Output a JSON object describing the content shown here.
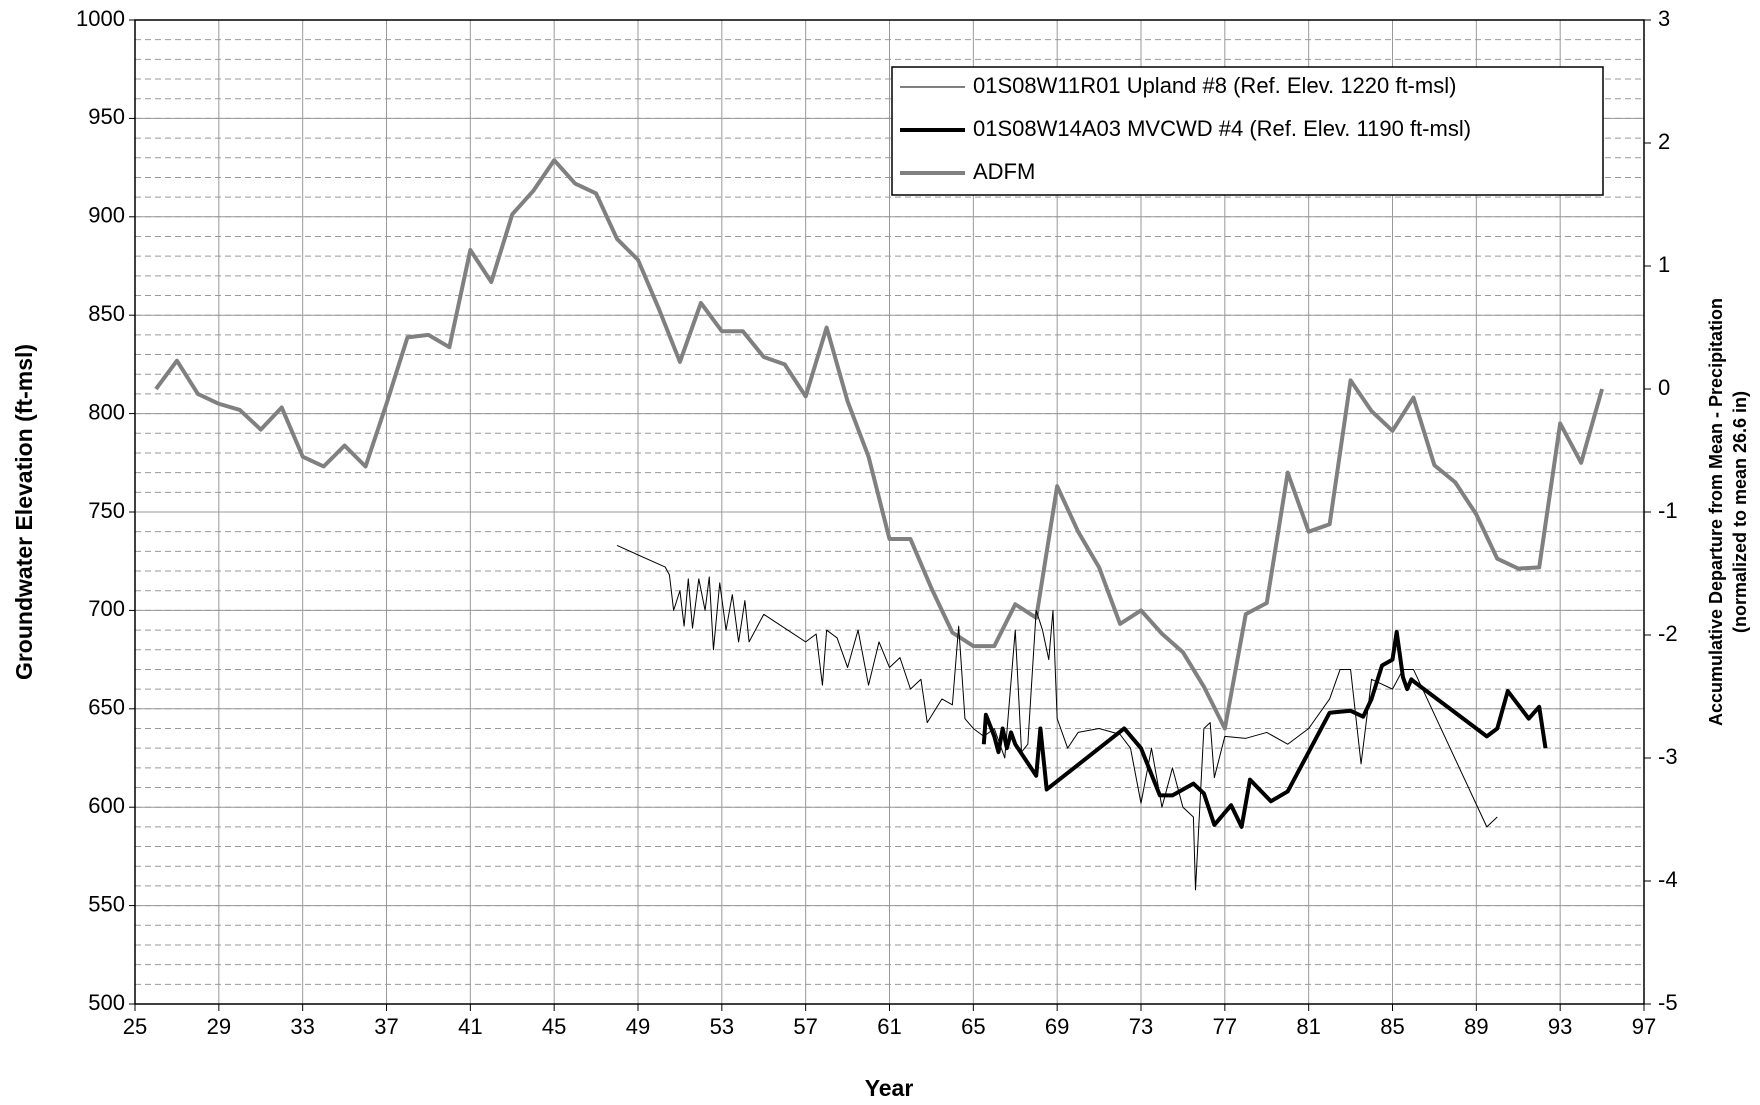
{
  "chart_data": {
    "type": "line",
    "x_label": "Year",
    "y_label": "Groundwater Elevation (ft-msl)",
    "y2_label": [
      "Accumulative Departure from Mean - Precipitation",
      "(normalized to mean 26.6 in)"
    ],
    "xlim": [
      25,
      97
    ],
    "xticks": [
      25,
      29,
      33,
      37,
      41,
      45,
      49,
      53,
      57,
      61,
      65,
      69,
      73,
      77,
      81,
      85,
      89,
      93,
      97
    ],
    "ylim": [
      500,
      1000
    ],
    "yticks": [
      500,
      550,
      600,
      650,
      700,
      750,
      800,
      850,
      900,
      950,
      1000
    ],
    "y2lim": [
      -5,
      3
    ],
    "y2ticks": [
      -5,
      -4,
      -3,
      -2,
      -1,
      0,
      1,
      2,
      3
    ],
    "grid": true,
    "y_minor_grid": 10,
    "legend": "upper right",
    "series": [
      {
        "name": "01S08W11R01 Upland #8 (Ref. Elev. 1220 ft-msl)",
        "color": "#000000",
        "width": 1,
        "x": [
          48.0,
          50.3,
          50.5,
          50.7,
          51.0,
          51.2,
          51.4,
          51.6,
          51.9,
          52.2,
          52.4,
          52.6,
          52.9,
          53.2,
          53.5,
          53.8,
          54.1,
          54.3,
          55.0,
          57.0,
          57.5,
          57.8,
          58.0,
          58.5,
          59.0,
          59.5,
          60.0,
          60.5,
          61.0,
          61.5,
          62.0,
          62.5,
          62.8,
          63.5,
          64.0,
          64.3,
          64.6,
          65.0,
          65.5,
          66.0,
          66.5,
          67.0,
          67.3,
          67.6,
          68.0,
          68.3,
          68.6,
          68.8,
          69.0,
          69.5,
          70.0,
          71.0,
          72.0,
          72.5,
          73.0,
          73.5,
          74.0,
          74.5,
          75.0,
          75.5,
          75.6,
          76.0,
          76.3,
          76.5,
          77.0,
          78.0,
          79.0,
          80.0,
          81.0,
          82.0,
          82.5,
          83.0,
          83.5,
          84.0,
          85.0,
          85.5,
          86.0,
          89.5,
          90.0
        ],
        "values": [
          733,
          722,
          718,
          700,
          710,
          692,
          716,
          691,
          716,
          700,
          717,
          680,
          714,
          690,
          708,
          684,
          705,
          684,
          698,
          684,
          688,
          662,
          690,
          686,
          671,
          690,
          662,
          684,
          671,
          676,
          660,
          665,
          643,
          655,
          652,
          692,
          645,
          640,
          636,
          640,
          625,
          690,
          628,
          632,
          700,
          690,
          675,
          700,
          645,
          630,
          638,
          640,
          637,
          630,
          602,
          630,
          600,
          620,
          600,
          595,
          558,
          640,
          643,
          615,
          636,
          635,
          638,
          632,
          640,
          655,
          670,
          670,
          622,
          665,
          660,
          670,
          670,
          590,
          595
        ]
      },
      {
        "name": "01S08W14A03 MVCWD #4 (Ref. Elev. 1190 ft-msl)",
        "color": "#000000",
        "width": 4,
        "x": [
          65.5,
          65.6,
          66.0,
          66.2,
          66.4,
          66.6,
          66.8,
          67.0,
          68.0,
          68.2,
          68.5,
          72.2,
          73.0,
          73.9,
          74.5,
          75.5,
          76.0,
          76.5,
          77.3,
          77.8,
          78.2,
          79.2,
          80.0,
          82.0,
          83.0,
          83.6,
          84.0,
          84.5,
          85.0,
          85.2,
          85.5,
          85.7,
          85.9,
          86.0,
          89.5,
          90.0,
          90.5,
          91.5,
          92.0,
          92.3
        ],
        "values": [
          632,
          647,
          636,
          628,
          640,
          630,
          638,
          632,
          616,
          640,
          609,
          640,
          630,
          606,
          606,
          612,
          607,
          591,
          601,
          590,
          614,
          603,
          608,
          648,
          649,
          646,
          655,
          672,
          675,
          689,
          666,
          660,
          665,
          664,
          636,
          640,
          659,
          645,
          651,
          630
        ]
      },
      {
        "name": "ADFM",
        "color": "#808080",
        "width": 4,
        "axis": "y2",
        "x": [
          26,
          27,
          28,
          29,
          30,
          31,
          32,
          33,
          34,
          35,
          36,
          37,
          38,
          39,
          40,
          41,
          42,
          43,
          44,
          45,
          46,
          47,
          48,
          49,
          50,
          51,
          52,
          53,
          54,
          55,
          56,
          57,
          58,
          59,
          60,
          61,
          62,
          63,
          64,
          65,
          66,
          67,
          68,
          69,
          70,
          71,
          72,
          73,
          74,
          75,
          76,
          77,
          78,
          79,
          80,
          81,
          82,
          83,
          84,
          85,
          86,
          87,
          88,
          89,
          90,
          91,
          92,
          93,
          94,
          95
        ],
        "values": [
          0,
          0.23,
          -0.04,
          -0.12,
          -0.17,
          -0.33,
          -0.15,
          -0.55,
          -0.63,
          -0.46,
          -0.63,
          -0.12,
          0.42,
          0.44,
          0.34,
          1.13,
          0.87,
          1.42,
          1.61,
          1.86,
          1.67,
          1.59,
          1.22,
          1.05,
          0.65,
          0.22,
          0.7,
          0.47,
          0.47,
          0.26,
          0.2,
          -0.06,
          0.5,
          -0.1,
          -0.55,
          -1.22,
          -1.22,
          -1.62,
          -1.98,
          -2.09,
          -2.09,
          -1.75,
          -1.86,
          -0.79,
          -1.16,
          -1.45,
          -1.91,
          -1.8,
          -1.99,
          -2.14,
          -2.42,
          -2.76,
          -1.83,
          -1.74,
          -0.68,
          -1.16,
          -1.1,
          0.07,
          -0.18,
          -0.34,
          -0.07,
          -0.62,
          -0.76,
          -1.02,
          -1.38,
          -1.46,
          -1.45,
          -0.28,
          -0.6,
          0
        ]
      }
    ]
  }
}
